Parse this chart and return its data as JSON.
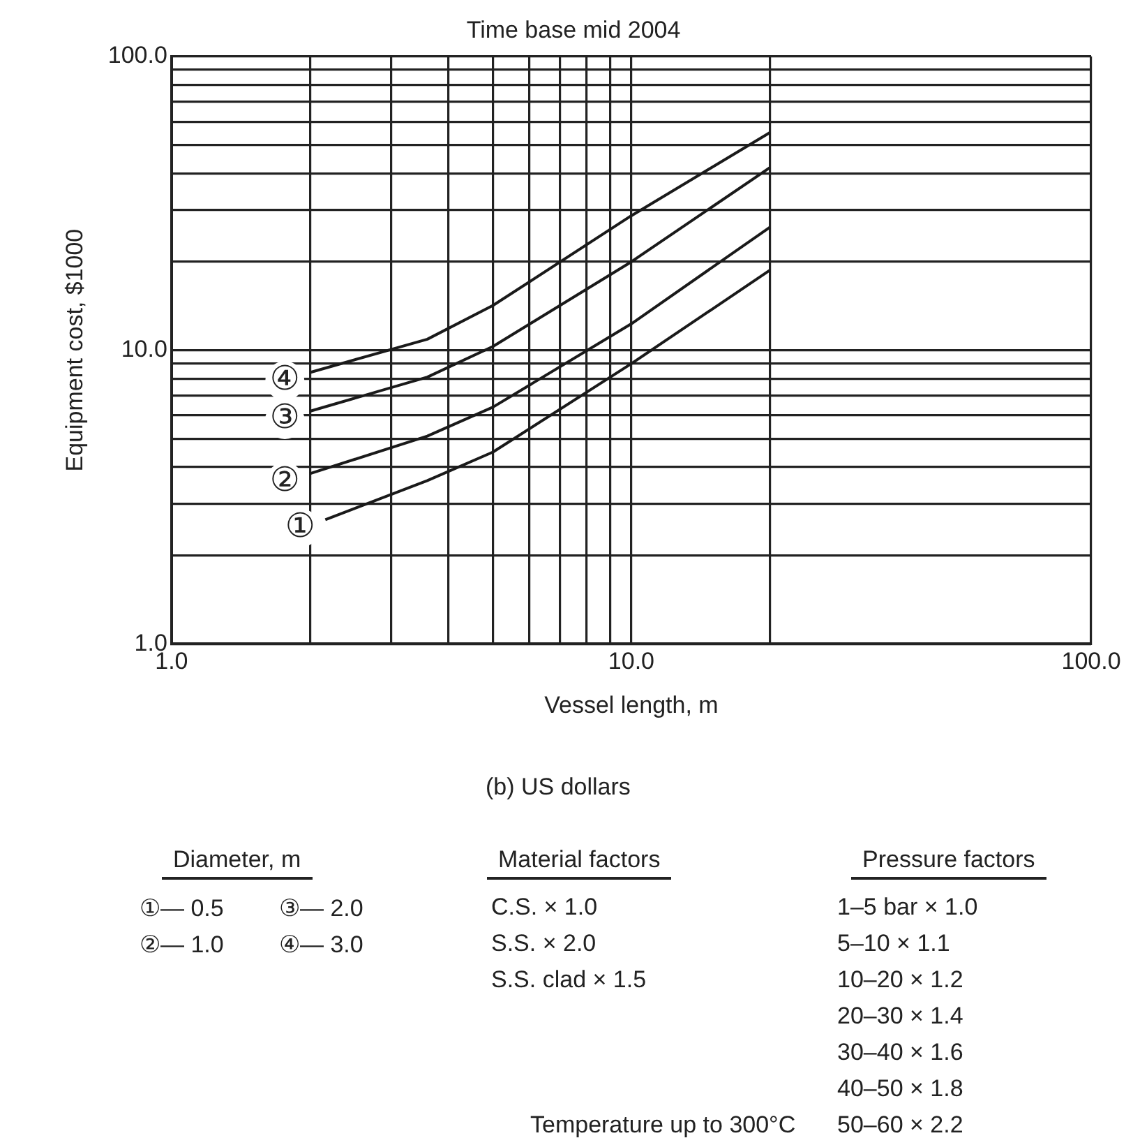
{
  "chart_data": {
    "type": "line",
    "title": "Time base mid 2004",
    "xlabel": "Vessel length, m",
    "ylabel": "Equipment cost, $1000",
    "log": "xy",
    "grid": true,
    "legend": false,
    "marker": "none",
    "line_style": "solid",
    "xlim": [
      1,
      100
    ],
    "ylim": [
      1,
      100
    ],
    "xticks": [
      {
        "value": 1,
        "label": "1.0"
      },
      {
        "value": 2,
        "label": null
      },
      {
        "value": 3,
        "label": null
      },
      {
        "value": 4,
        "label": null
      },
      {
        "value": 5,
        "label": null
      },
      {
        "value": 6,
        "label": null
      },
      {
        "value": 7,
        "label": null
      },
      {
        "value": 8,
        "label": null
      },
      {
        "value": 9,
        "label": null
      },
      {
        "value": 10,
        "label": "10.0"
      },
      {
        "value": 20,
        "label": null
      },
      {
        "value": 100,
        "label": "100.0"
      }
    ],
    "yticks": [
      {
        "value": 1,
        "label": "1.0"
      },
      {
        "value": 2,
        "label": null
      },
      {
        "value": 3,
        "label": null
      },
      {
        "value": 4,
        "label": null
      },
      {
        "value": 5,
        "label": null
      },
      {
        "value": 6,
        "label": null
      },
      {
        "value": 7,
        "label": null
      },
      {
        "value": 8,
        "label": null
      },
      {
        "value": 9,
        "label": null
      },
      {
        "value": 10,
        "label": "10.0"
      },
      {
        "value": 20,
        "label": null
      },
      {
        "value": 30,
        "label": null
      },
      {
        "value": 40,
        "label": null
      },
      {
        "value": 50,
        "label": null
      },
      {
        "value": 60,
        "label": null
      },
      {
        "value": 70,
        "label": null
      },
      {
        "value": 80,
        "label": null
      },
      {
        "value": 90,
        "label": null
      },
      {
        "value": 100,
        "label": "100.0"
      }
    ],
    "series": [
      {
        "name": "①",
        "color": "#1a1a1a",
        "x": [
          2.16,
          3.6,
          5,
          10,
          20
        ],
        "values": [
          2.65,
          3.6,
          4.5,
          9.0,
          18.7
        ]
      },
      {
        "name": "②",
        "color": "#1a1a1a",
        "x": [
          2,
          3.6,
          5,
          10,
          20
        ],
        "values": [
          3.8,
          5.1,
          6.4,
          12.3,
          26.2
        ]
      },
      {
        "name": "③",
        "color": "#1a1a1a",
        "x": [
          2,
          3.6,
          5,
          10,
          20
        ],
        "values": [
          6.2,
          8.1,
          10.3,
          20,
          41.8
        ]
      },
      {
        "name": "④",
        "color": "#1a1a1a",
        "x": [
          2,
          3.6,
          5,
          10,
          20
        ],
        "values": [
          8.4,
          10.9,
          14.2,
          28.7,
          55
        ]
      }
    ],
    "annotations": [
      "(b) US dollars",
      "Diameter, m",
      "①— 0.5",
      "③— 2.0",
      "②— 1.0",
      "④— 3.0",
      "Material factors",
      "C.S. × 1.0",
      "S.S. × 2.0",
      "S.S. clad × 1.5",
      "Pressure factors",
      "1–5 bar × 1.0",
      "5–10 × 1.1",
      "10–20 × 1.2",
      "20–30 × 1.4",
      "30–40 × 1.6",
      "40–50 × 1.8",
      "50–60 × 2.2",
      "Temperature up to 300°C"
    ]
  }
}
